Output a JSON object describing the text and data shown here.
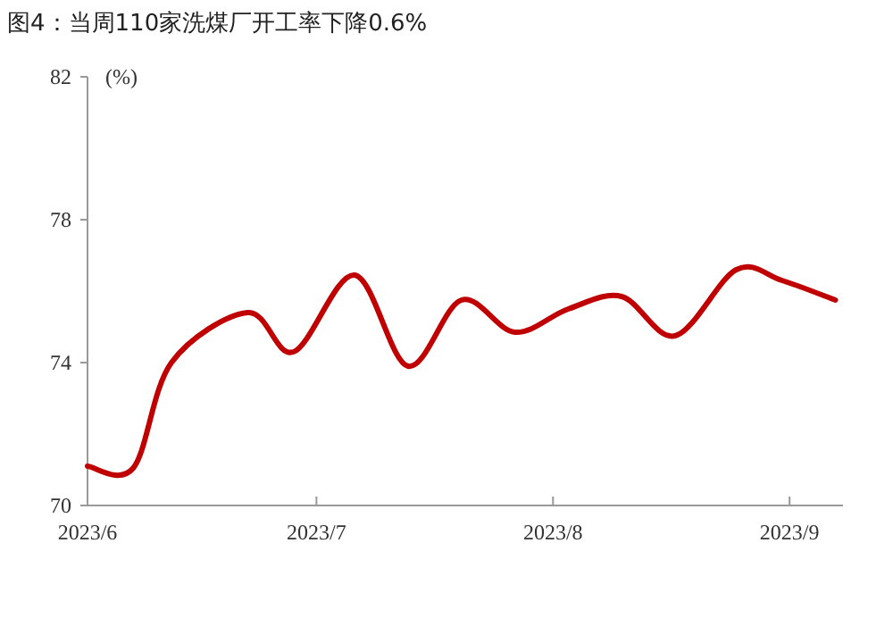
{
  "chart_data": {
    "type": "line",
    "title": "图4：当周110家洗煤厂开工率下降0.6%",
    "ylabel": "(%)",
    "x": [
      "2023-06-01",
      "2023-06-07",
      "2023-06-12",
      "2023-06-22",
      "2023-06-28",
      "2023-07-06",
      "2023-07-13",
      "2023-07-20",
      "2023-07-27",
      "2023-08-03",
      "2023-08-10",
      "2023-08-17",
      "2023-08-25",
      "2023-08-31",
      "2023-09-07"
    ],
    "series": [
      {
        "color": "#c00000",
        "values": [
          71.1,
          71.05,
          74.0,
          75.4,
          74.3,
          76.45,
          73.9,
          75.75,
          74.85,
          75.5,
          75.85,
          74.75,
          76.6,
          76.3,
          75.75
        ]
      }
    ],
    "xlim": [
      "2023-06-01",
      "2023-09-08"
    ],
    "xticks": [
      {
        "value": "2023-06-01",
        "label": "2023/6"
      },
      {
        "value": "2023-07-01",
        "label": "2023/7"
      },
      {
        "value": "2023-08-01",
        "label": "2023/8"
      },
      {
        "value": "2023-09-01",
        "label": "2023/9"
      }
    ],
    "ylim": [
      70,
      82
    ],
    "yticks": [
      70,
      74,
      78,
      82
    ],
    "grid": false,
    "marker": "none",
    "line_style": "solid"
  }
}
